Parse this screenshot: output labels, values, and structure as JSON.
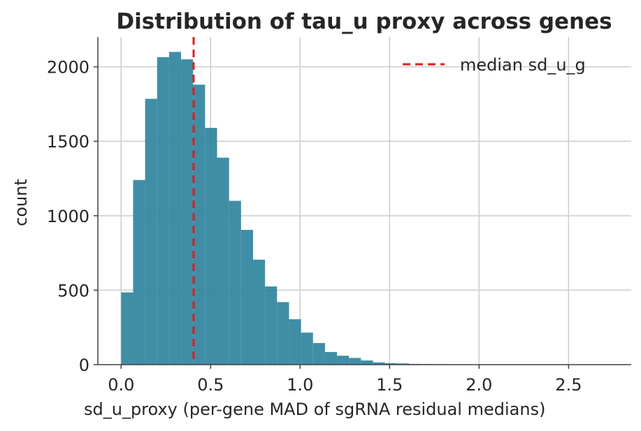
{
  "chart_data": {
    "type": "bar",
    "title": "Distribution of tau_u proxy across genes",
    "xlabel": "sd_u_proxy (per-gene MAD of sgRNA residual medians)",
    "ylabel": "count",
    "xlim": [
      -0.13,
      2.85
    ],
    "ylim": [
      0,
      2200
    ],
    "x_ticks": [
      0.0,
      0.5,
      1.0,
      1.5,
      2.0,
      2.5
    ],
    "x_tick_labels": [
      "0.0",
      "0.5",
      "1.0",
      "1.5",
      "2.0",
      "2.5"
    ],
    "y_ticks": [
      0,
      500,
      1000,
      1500,
      2000
    ],
    "y_tick_labels": [
      "0",
      "500",
      "1000",
      "1500",
      "2000"
    ],
    "grid": true,
    "bar_color": "#2f849e",
    "bin_edges": [
      0.0,
      0.067,
      0.134,
      0.201,
      0.268,
      0.335,
      0.402,
      0.469,
      0.536,
      0.603,
      0.67,
      0.737,
      0.804,
      0.871,
      0.938,
      1.005,
      1.072,
      1.139,
      1.206,
      1.273,
      1.34,
      1.407,
      1.474,
      1.541,
      1.608,
      1.675,
      1.742,
      1.809,
      1.876,
      1.943,
      2.01,
      2.077,
      2.144,
      2.211,
      2.278,
      2.345,
      2.412,
      2.479,
      2.546,
      2.613,
      2.68
    ],
    "counts": [
      485,
      1240,
      1785,
      2065,
      2100,
      2050,
      1880,
      1590,
      1390,
      1100,
      905,
      705,
      525,
      420,
      305,
      215,
      145,
      85,
      60,
      45,
      28,
      15,
      10,
      8,
      5,
      4,
      3,
      2,
      2,
      1,
      1,
      1,
      1,
      0,
      0,
      0,
      0,
      0,
      0,
      1
    ],
    "reference_line": {
      "x": 0.405,
      "label": "median sd_u_g",
      "color": "#e41a1c",
      "style": "dashed"
    },
    "legend": {
      "placement": "top-right",
      "entries": [
        "median sd_u_g"
      ]
    }
  }
}
